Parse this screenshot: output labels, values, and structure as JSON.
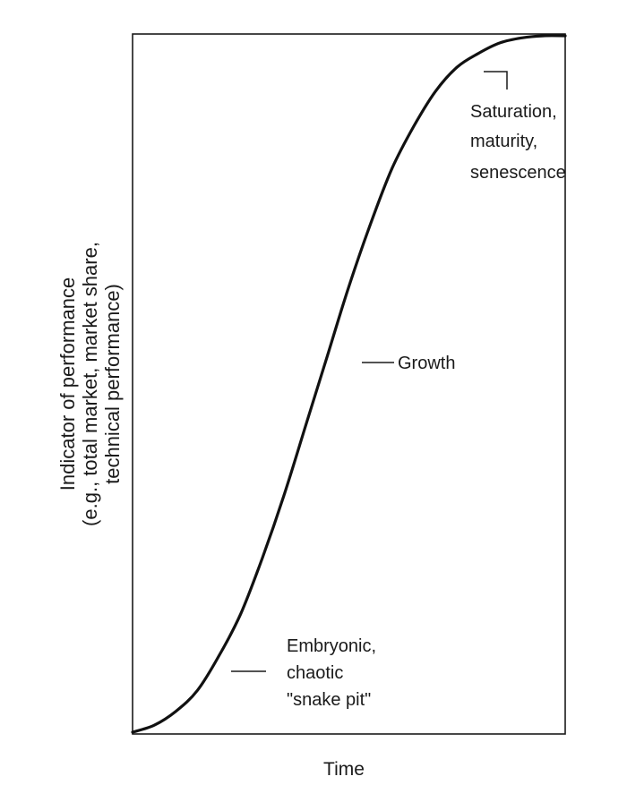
{
  "chart_data": {
    "type": "line",
    "title": "",
    "xlabel": "Time",
    "ylabel_lines": [
      "Indicator of performance",
      "(e.g., total market, market share,",
      "technical performance)"
    ],
    "xlim": [
      0,
      1
    ],
    "ylim": [
      0,
      1
    ],
    "grid": false,
    "series": [
      {
        "x": [
          0.0,
          0.05,
          0.1,
          0.15,
          0.2,
          0.25,
          0.3,
          0.35,
          0.4,
          0.45,
          0.5,
          0.55,
          0.6,
          0.65,
          0.7,
          0.75,
          0.8,
          0.85,
          0.9,
          0.95,
          1.0
        ],
        "y": [
          0.0,
          0.01,
          0.03,
          0.06,
          0.11,
          0.17,
          0.25,
          0.34,
          0.44,
          0.54,
          0.64,
          0.73,
          0.81,
          0.87,
          0.92,
          0.955,
          0.975,
          0.99,
          0.997,
          1.0,
          1.0
        ]
      }
    ],
    "annotations": [
      {
        "lines": [
          "Embryonic,",
          "chaotic",
          "\"snake pit\""
        ]
      },
      {
        "lines": [
          "Growth"
        ]
      },
      {
        "lines": [
          "Saturation,",
          "maturity,",
          "senescence"
        ]
      }
    ]
  }
}
